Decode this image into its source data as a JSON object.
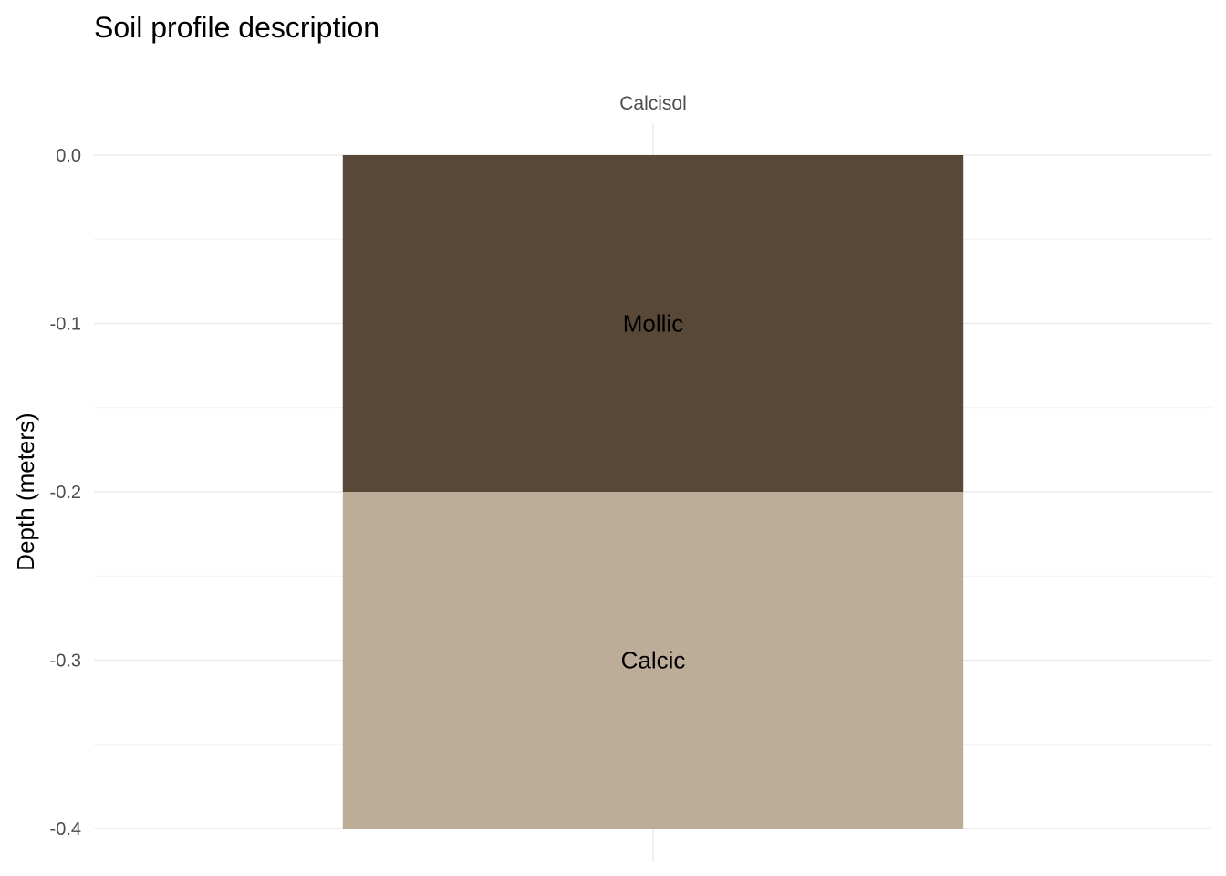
{
  "chart_data": {
    "type": "bar",
    "title": "Soil profile description",
    "xlabel": "",
    "ylabel": "Depth (meters)",
    "categories": [
      "Calcisol"
    ],
    "ylim": [
      -0.4,
      0.0
    ],
    "yticks": [
      "0.0",
      "-0.1",
      "-0.2",
      "-0.3",
      "-0.4"
    ],
    "yticks_values": [
      0.0,
      -0.1,
      -0.2,
      -0.3,
      -0.4
    ],
    "grid": true,
    "x_axis_position": "top",
    "series": [
      {
        "name": "Mollic",
        "top": 0.0,
        "bottom": -0.2,
        "values": [
          -0.2
        ],
        "color": "#574837"
      },
      {
        "name": "Calcic",
        "top": -0.2,
        "bottom": -0.4,
        "values": [
          -0.2
        ],
        "color": "#bdad98"
      }
    ]
  }
}
